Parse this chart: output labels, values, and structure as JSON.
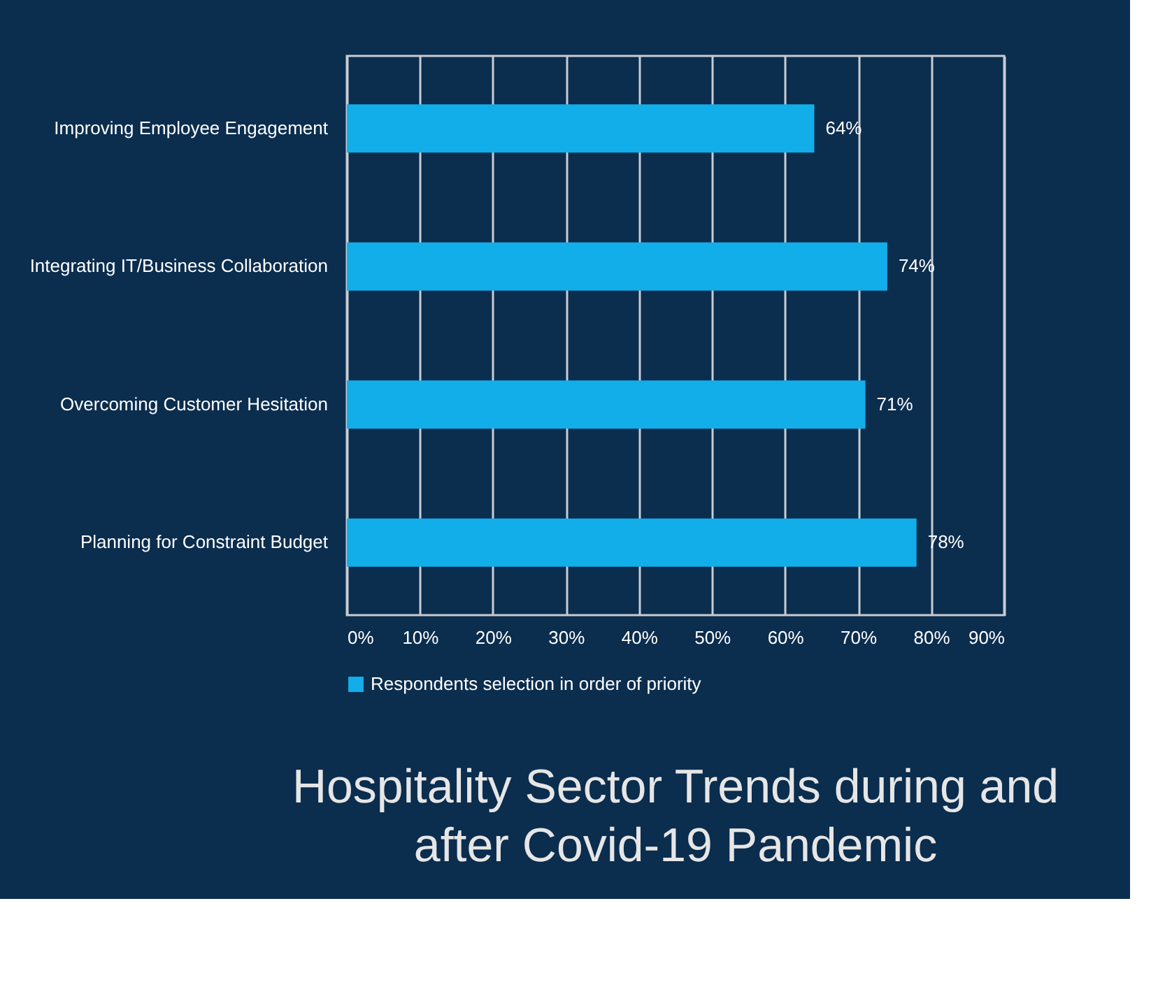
{
  "chart_data": {
    "type": "bar",
    "orientation": "horizontal",
    "title": "Hospitality Sector Trends during and after Covid-19 Pandemic",
    "categories": [
      "Improving Employee Engagement",
      "Integrating IT/Business Collaboration",
      "Overcoming Customer Hesitation",
      "Planning for Constraint Budget"
    ],
    "series": [
      {
        "name": "Respondents selection in order of priority",
        "color": "#12aeea",
        "values": [
          64,
          74,
          71,
          78
        ]
      }
    ],
    "value_labels": [
      "64%",
      "74%",
      "71%",
      "78%"
    ],
    "xlim": [
      0,
      90
    ],
    "xticks": [
      {
        "value": 0,
        "label": "0%"
      },
      {
        "value": 10,
        "label": "10%"
      },
      {
        "value": 20,
        "label": "20%"
      },
      {
        "value": 30,
        "label": "30%"
      },
      {
        "value": 40,
        "label": "40%"
      },
      {
        "value": 50,
        "label": "50%"
      },
      {
        "value": 60,
        "label": "60%"
      },
      {
        "value": 70,
        "label": "70%"
      },
      {
        "value": 80,
        "label": "80%"
      },
      {
        "value": 90,
        "label": "90%"
      }
    ],
    "grid": "x",
    "legend": "bottom"
  }
}
